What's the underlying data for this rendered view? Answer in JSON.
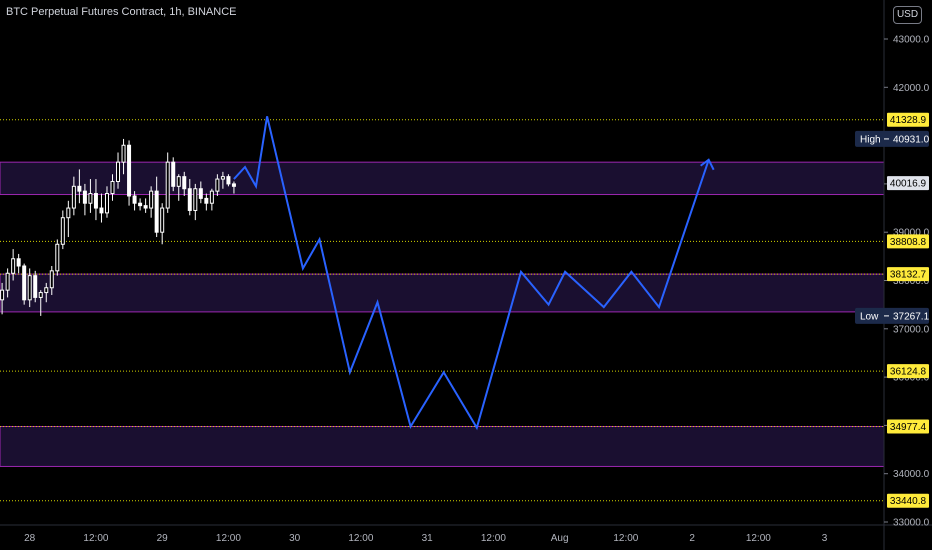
{
  "header": {
    "title": "BTC Perpetual Futures Contract, 1h, BINANCE",
    "currency": "USD"
  },
  "colors": {
    "background": "#000000",
    "zone_fill": "#1a0f30",
    "zone_border": "#9c27b0",
    "level_line": "#d4d400",
    "level_label": "#ffeb3b",
    "path": "#2962ff",
    "candle_up": "#ffffff",
    "candle_down": "#ffffff",
    "hl_label": "#1c2a4a"
  },
  "chart_data": {
    "type": "candlestick",
    "ylim": [
      32950,
      44000
    ],
    "y_ticks": [
      33000,
      34000,
      35000,
      36000,
      37000,
      38000,
      39000,
      40000,
      41000,
      42000,
      43000
    ],
    "y_tick_labels": [
      "33000.0",
      "34000.0",
      "35000.0",
      "36000.0",
      "37000.0",
      "38000.0",
      "39000.0",
      "40000.0",
      "41000.0",
      "42000.0",
      "43000.0"
    ],
    "x_ticks": [
      {
        "label": "28",
        "t": 5
      },
      {
        "label": "12:00",
        "t": 17
      },
      {
        "label": "29",
        "t": 29
      },
      {
        "label": "12:00",
        "t": 41
      },
      {
        "label": "30",
        "t": 53
      },
      {
        "label": "12:00",
        "t": 65
      },
      {
        "label": "31",
        "t": 77
      },
      {
        "label": "12:00",
        "t": 89
      },
      {
        "label": "Aug",
        "t": 101
      },
      {
        "label": "12:00",
        "t": 113
      },
      {
        "label": "2",
        "t": 125
      },
      {
        "label": "12:00",
        "t": 137
      },
      {
        "label": "3",
        "t": 149
      }
    ],
    "levels": [
      {
        "value": 41328.9,
        "label": "41328.9"
      },
      {
        "value": 38808.8,
        "label": "38808.8"
      },
      {
        "value": 38132.7,
        "label": "38132.7"
      },
      {
        "value": 36124.8,
        "label": "36124.8"
      },
      {
        "value": 34977.4,
        "label": "34977.4"
      },
      {
        "value": 33440.8,
        "label": "33440.8"
      }
    ],
    "zones": [
      {
        "top": 40450,
        "bottom": 39780
      },
      {
        "top": 38132.7,
        "bottom": 37350
      },
      {
        "top": 34977.4,
        "bottom": 34150
      }
    ],
    "current_price": {
      "value": 40016.9,
      "label": "40016.9"
    },
    "high": {
      "name": "High",
      "value": 40931.0,
      "label": "40931.0"
    },
    "low": {
      "name": "Low",
      "value": 37267.1,
      "label": "37267.1"
    },
    "candles": [
      {
        "o": 37600,
        "h": 37950,
        "l": 37300,
        "c": 37800
      },
      {
        "o": 37800,
        "h": 38250,
        "l": 37650,
        "c": 38150
      },
      {
        "o": 38150,
        "h": 38650,
        "l": 38000,
        "c": 38450
      },
      {
        "o": 38450,
        "h": 38550,
        "l": 38150,
        "c": 38300
      },
      {
        "o": 38300,
        "h": 38350,
        "l": 37500,
        "c": 37600
      },
      {
        "o": 37600,
        "h": 38250,
        "l": 37450,
        "c": 38100
      },
      {
        "o": 38100,
        "h": 38200,
        "l": 37550,
        "c": 37650
      },
      {
        "o": 37650,
        "h": 37800,
        "l": 37267,
        "c": 37750
      },
      {
        "o": 37750,
        "h": 37950,
        "l": 37550,
        "c": 37850
      },
      {
        "o": 37850,
        "h": 38300,
        "l": 37700,
        "c": 38200
      },
      {
        "o": 38200,
        "h": 38850,
        "l": 38100,
        "c": 38750
      },
      {
        "o": 38750,
        "h": 39450,
        "l": 38650,
        "c": 39300
      },
      {
        "o": 39300,
        "h": 39650,
        "l": 38900,
        "c": 39500
      },
      {
        "o": 39500,
        "h": 40150,
        "l": 39350,
        "c": 39950
      },
      {
        "o": 39950,
        "h": 40300,
        "l": 39600,
        "c": 39850
      },
      {
        "o": 39850,
        "h": 40000,
        "l": 39350,
        "c": 39600
      },
      {
        "o": 39600,
        "h": 40100,
        "l": 39400,
        "c": 39800
      },
      {
        "o": 39800,
        "h": 40100,
        "l": 39250,
        "c": 39500
      },
      {
        "o": 39500,
        "h": 39800,
        "l": 39200,
        "c": 39400
      },
      {
        "o": 39400,
        "h": 39950,
        "l": 39300,
        "c": 39800
      },
      {
        "o": 39800,
        "h": 40200,
        "l": 39650,
        "c": 40050
      },
      {
        "o": 40050,
        "h": 40650,
        "l": 39900,
        "c": 40450
      },
      {
        "o": 40450,
        "h": 40931,
        "l": 40200,
        "c": 40800
      },
      {
        "o": 40800,
        "h": 40900,
        "l": 39550,
        "c": 39750
      },
      {
        "o": 39750,
        "h": 39850,
        "l": 39450,
        "c": 39600
      },
      {
        "o": 39600,
        "h": 39700,
        "l": 39450,
        "c": 39550
      },
      {
        "o": 39550,
        "h": 39700,
        "l": 39400,
        "c": 39500
      },
      {
        "o": 39500,
        "h": 39950,
        "l": 39300,
        "c": 39850
      },
      {
        "o": 39850,
        "h": 40150,
        "l": 38900,
        "c": 39000
      },
      {
        "o": 39000,
        "h": 39600,
        "l": 38750,
        "c": 39500
      },
      {
        "o": 39500,
        "h": 40650,
        "l": 39400,
        "c": 40450
      },
      {
        "o": 40450,
        "h": 40550,
        "l": 39850,
        "c": 39950
      },
      {
        "o": 39950,
        "h": 40200,
        "l": 39650,
        "c": 40150
      },
      {
        "o": 40150,
        "h": 40250,
        "l": 39750,
        "c": 39900
      },
      {
        "o": 39900,
        "h": 40100,
        "l": 39350,
        "c": 39450
      },
      {
        "o": 39450,
        "h": 40000,
        "l": 39250,
        "c": 39900
      },
      {
        "o": 39900,
        "h": 40050,
        "l": 39600,
        "c": 39700
      },
      {
        "o": 39700,
        "h": 39800,
        "l": 39450,
        "c": 39600
      },
      {
        "o": 39600,
        "h": 39900,
        "l": 39450,
        "c": 39850
      },
      {
        "o": 39850,
        "h": 40200,
        "l": 39750,
        "c": 40100
      },
      {
        "o": 40100,
        "h": 40250,
        "l": 39900,
        "c": 40150
      },
      {
        "o": 40150,
        "h": 40200,
        "l": 39950,
        "c": 40000
      },
      {
        "o": 40000,
        "h": 40050,
        "l": 39800,
        "c": 39950
      }
    ],
    "forecast_path": [
      {
        "t": 42,
        "v": 40100
      },
      {
        "t": 44,
        "v": 40350
      },
      {
        "t": 46,
        "v": 39950
      },
      {
        "t": 48,
        "v": 41400
      },
      {
        "t": 54.5,
        "v": 38250
      },
      {
        "t": 57.5,
        "v": 38850
      },
      {
        "t": 63,
        "v": 36100
      },
      {
        "t": 68,
        "v": 37550
      },
      {
        "t": 74,
        "v": 34977
      },
      {
        "t": 80,
        "v": 36100
      },
      {
        "t": 86,
        "v": 34950
      },
      {
        "t": 94,
        "v": 38180
      },
      {
        "t": 99,
        "v": 37500
      },
      {
        "t": 102,
        "v": 38180
      },
      {
        "t": 109,
        "v": 37450
      },
      {
        "t": 114,
        "v": 38180
      },
      {
        "t": 119,
        "v": 37450
      },
      {
        "t": 128,
        "v": 40500
      }
    ]
  }
}
